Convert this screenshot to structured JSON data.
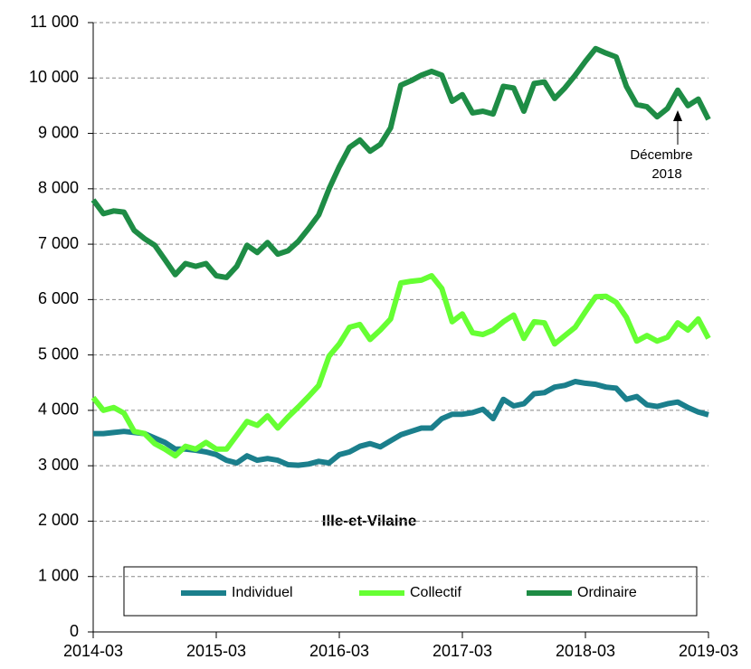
{
  "chart_data": {
    "type": "line",
    "label": "Ille-et-Vilaine",
    "annotation": [
      "Décembre",
      "2018"
    ],
    "categories": [
      "2014-03",
      null,
      null,
      null,
      null,
      null,
      null,
      null,
      null,
      null,
      null,
      null,
      "2015-03",
      null,
      null,
      null,
      null,
      null,
      null,
      null,
      null,
      null,
      null,
      null,
      "2016-03",
      null,
      null,
      null,
      null,
      null,
      null,
      null,
      null,
      null,
      null,
      null,
      "2017-03",
      null,
      null,
      null,
      null,
      null,
      null,
      null,
      null,
      null,
      null,
      null,
      "2018-03",
      null,
      null,
      null,
      null,
      null,
      null,
      null,
      null,
      null,
      null,
      null,
      "2019-03"
    ],
    "series": [
      {
        "name": "Individuel",
        "color": "#1b7f8c",
        "values": [
          3580,
          3580,
          3600,
          3620,
          3600,
          3580,
          3500,
          3420,
          3300,
          3300,
          3280,
          3250,
          3200,
          3100,
          3050,
          3180,
          3100,
          3130,
          3100,
          3020,
          3010,
          3030,
          3080,
          3050,
          3200,
          3250,
          3350,
          3400,
          3340,
          3450,
          3560,
          3620,
          3680,
          3680,
          3850,
          3930,
          3930,
          3960,
          4020,
          3850,
          4200,
          4080,
          4120,
          4300,
          4320,
          4420,
          4450,
          4520,
          4490,
          4470,
          4420,
          4400,
          4200,
          4250,
          4100,
          4070,
          4120,
          4150,
          4050,
          3970,
          3920
        ]
      },
      {
        "name": "Collectif",
        "color": "#66ff33",
        "values": [
          4230,
          4000,
          4050,
          3950,
          3620,
          3580,
          3400,
          3300,
          3180,
          3350,
          3300,
          3420,
          3300,
          3300,
          3550,
          3800,
          3730,
          3900,
          3680,
          3880,
          4060,
          4250,
          4450,
          4980,
          5200,
          5500,
          5550,
          5280,
          5450,
          5650,
          6300,
          6330,
          6350,
          6430,
          6200,
          5600,
          5740,
          5400,
          5370,
          5450,
          5600,
          5720,
          5300,
          5600,
          5580,
          5200,
          5350,
          5500,
          5780,
          6050,
          6060,
          5950,
          5680,
          5250,
          5350,
          5250,
          5320,
          5580,
          5450,
          5650,
          5300
        ]
      },
      {
        "name": "Ordinaire",
        "color": "#1e8c45",
        "values": [
          7800,
          7550,
          7600,
          7580,
          7250,
          7100,
          6980,
          6720,
          6450,
          6650,
          6600,
          6650,
          6430,
          6400,
          6600,
          6980,
          6850,
          7030,
          6820,
          6880,
          7050,
          7280,
          7530,
          8000,
          8400,
          8750,
          8880,
          8680,
          8800,
          9100,
          9870,
          9950,
          10050,
          10120,
          10050,
          9580,
          9700,
          9370,
          9400,
          9350,
          9850,
          9820,
          9400,
          9900,
          9930,
          9630,
          9820,
          10050,
          10300,
          10530,
          10450,
          10380,
          9850,
          9520,
          9480,
          9300,
          9450,
          9780,
          9500,
          9620,
          9250
        ]
      }
    ],
    "ylim": [
      0,
      11000
    ],
    "yticks": [
      0,
      {
        "value": 1000,
        "label": "1 000"
      },
      {
        "value": 2000,
        "label": "2 000"
      },
      {
        "value": 3000,
        "label": "3 000"
      },
      {
        "value": 4000,
        "label": "4 000"
      },
      {
        "value": 5000,
        "label": "5 000"
      },
      {
        "value": 6000,
        "label": "6 000"
      },
      {
        "value": 7000,
        "label": "7 000"
      },
      {
        "value": 8000,
        "label": "8 000"
      },
      {
        "value": 9000,
        "label": "9 000"
      },
      {
        "value": 10000,
        "label": "10 000"
      },
      {
        "value": 11000,
        "label": "11 000"
      }
    ],
    "grid": true
  }
}
